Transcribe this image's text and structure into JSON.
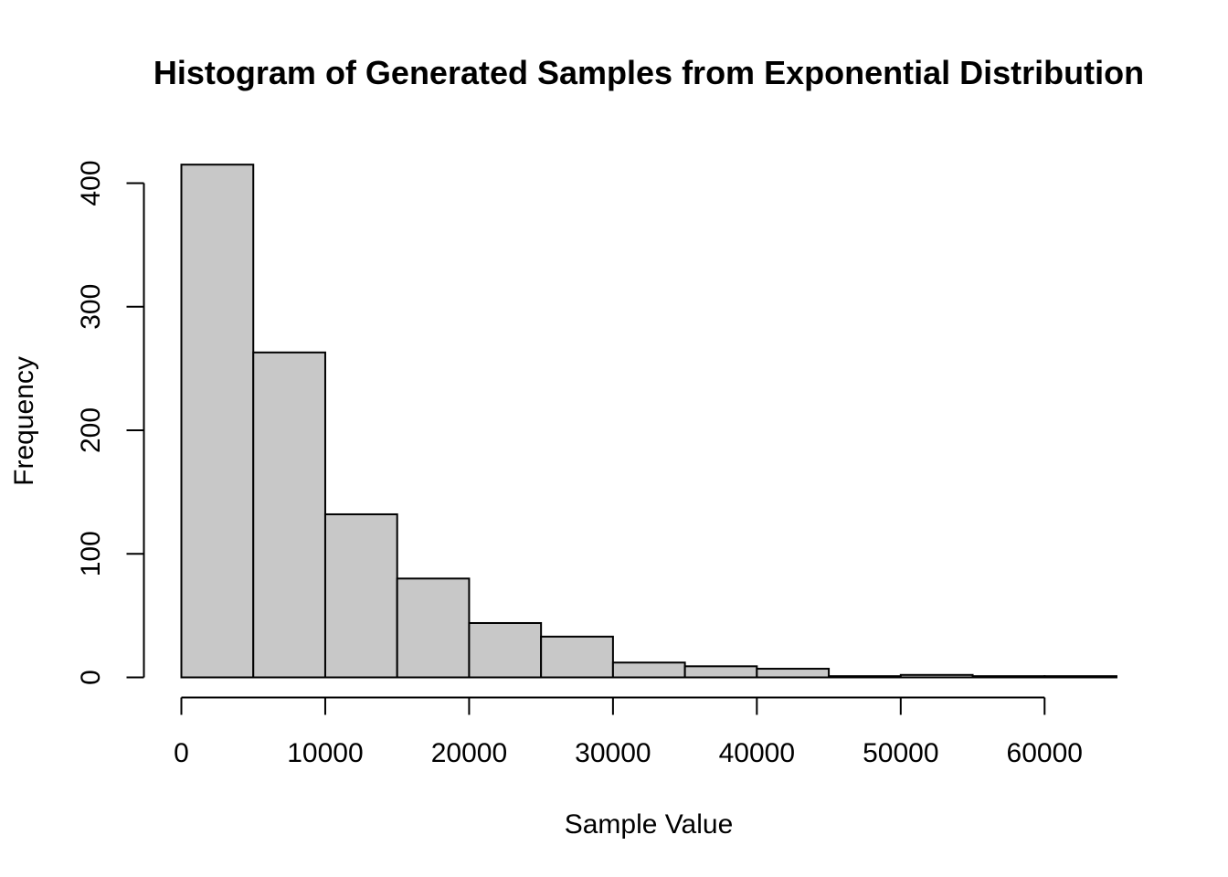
{
  "chart_data": {
    "type": "bar",
    "title": "Histogram of Generated Samples from Exponential Distribution",
    "xlabel": "Sample Value",
    "ylabel": "Frequency",
    "bin_width": 5000,
    "bins": [
      {
        "x0": 0,
        "x1": 5000,
        "count": 415
      },
      {
        "x0": 5000,
        "x1": 10000,
        "count": 263
      },
      {
        "x0": 10000,
        "x1": 15000,
        "count": 132
      },
      {
        "x0": 15000,
        "x1": 20000,
        "count": 80
      },
      {
        "x0": 20000,
        "x1": 25000,
        "count": 44
      },
      {
        "x0": 25000,
        "x1": 30000,
        "count": 33
      },
      {
        "x0": 30000,
        "x1": 35000,
        "count": 12
      },
      {
        "x0": 35000,
        "x1": 40000,
        "count": 9
      },
      {
        "x0": 40000,
        "x1": 45000,
        "count": 7
      },
      {
        "x0": 45000,
        "x1": 50000,
        "count": 1
      },
      {
        "x0": 50000,
        "x1": 55000,
        "count": 2
      },
      {
        "x0": 55000,
        "x1": 60000,
        "count": 1
      },
      {
        "x0": 60000,
        "x1": 65000,
        "count": 1
      }
    ],
    "xlim": [
      0,
      65000
    ],
    "ylim": [
      0,
      415
    ],
    "x_ticks": [
      0,
      10000,
      20000,
      30000,
      40000,
      50000,
      60000
    ],
    "y_ticks": [
      0,
      100,
      200,
      300,
      400
    ],
    "grid": false,
    "bar_fill": "#c8c8c8",
    "bar_stroke": "#000000"
  }
}
